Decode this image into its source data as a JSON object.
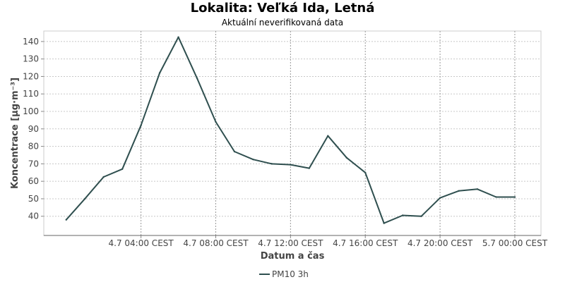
{
  "header": {
    "title": "Lokalita: Veľká Ida, Letná",
    "subtitle": "Aktuální neverifikovaná data"
  },
  "chart_data": {
    "type": "line",
    "xlabel": "Datum a čas",
    "ylabel": "Koncentrace [µg·m⁻³]",
    "x_tick_labels": [
      "4.7 04:00 CEST",
      "4.7 08:00 CEST",
      "4.7 12:00 CEST",
      "4.7 16:00 CEST",
      "4.7 20:00 CEST",
      "5.7 00:00 CEST"
    ],
    "x_tick_hours": [
      4,
      8,
      12,
      16,
      20,
      24
    ],
    "xlim_hours": [
      -1.2,
      25.4
    ],
    "yticks": [
      40,
      50,
      60,
      70,
      80,
      90,
      100,
      110,
      120,
      130,
      140
    ],
    "ylim": [
      29,
      146
    ],
    "grid": true,
    "legend": "bottom",
    "series": [
      {
        "name": "PM10 3h",
        "color": "#2f4f4f",
        "x_hours": [
          0,
          1,
          2,
          3,
          4,
          5,
          6,
          7,
          8,
          9,
          10,
          11,
          12,
          13,
          14,
          15,
          16,
          17,
          18,
          19,
          20,
          21,
          22,
          23,
          24
        ],
        "values": [
          38,
          50,
          62.5,
          67,
          92,
          122,
          142.5,
          119,
          94,
          77,
          72.5,
          70,
          69.5,
          67.5,
          86,
          73.5,
          65,
          36,
          40.5,
          40,
          50.5,
          54.5,
          55.5,
          51,
          51
        ]
      }
    ]
  }
}
